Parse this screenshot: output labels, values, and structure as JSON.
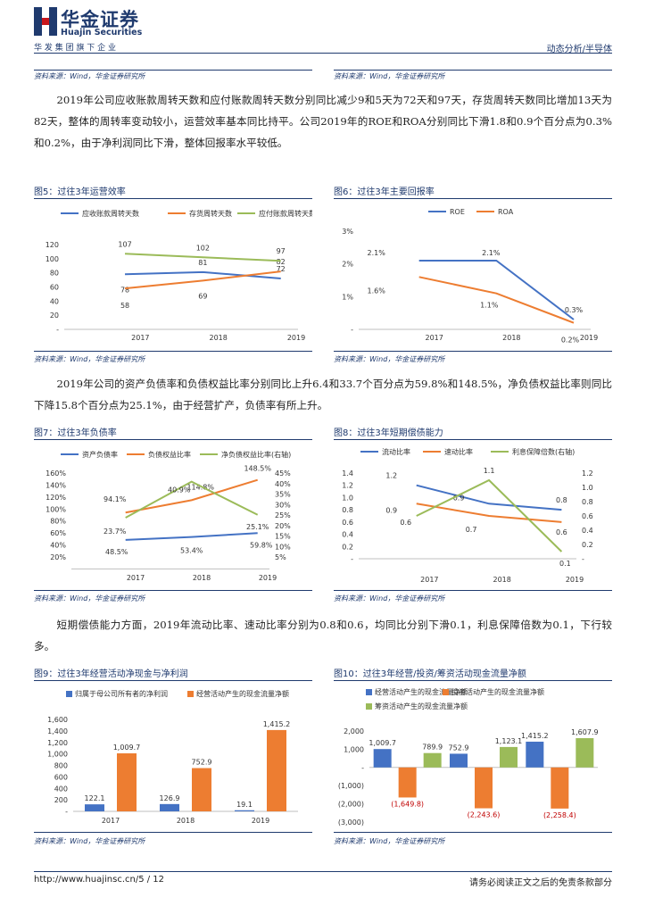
{
  "header": {
    "brand_cn": "华金证券",
    "brand_en": "Huajin Securities",
    "tagline": "华 发 集 团 旗 下 企 业",
    "section": "动态分析/半导体"
  },
  "top_sources": {
    "left": "资料来源：Wind，华金证券研究所",
    "right": "资料来源：Wind，华金证券研究所"
  },
  "para1": "2019年公司应收账款周转天数和应付账款周转天数分别同比减少9和5天为72天和97天，存货周转天数同比增加13天为82天，整体的周转率变动较小，运营效率基本同比持平。公司2019年的ROE和ROA分别同比下滑1.8和0.9个百分点为0.3%和0.2%，由于净利润同比下滑，整体回报率水平较低。",
  "para2": "2019年公司的资产负债率和负债权益比率分别同比上升6.4和33.7个百分点为59.8%和148.5%，净负债权益比率则同比下降15.8个百分点为25.1%，由于经营扩产，负债率有所上升。",
  "para3": "短期偿债能力方面，2019年流动比率、速动比率分别为0.8和0.6，均同比分别下滑0.1，利息保障倍数为0.1，下行较多。",
  "figures": {
    "fig5": {
      "title": "图5：过往3年运营效率",
      "source": "资料来源：Wind，华金证券研究所"
    },
    "fig6": {
      "title": "图6：过往3年主要回报率",
      "source": "资料来源：Wind，华金证券研究所"
    },
    "fig7": {
      "title": "图7：过往3年负债率",
      "source": "资料来源：Wind，华金证券研究所"
    },
    "fig8": {
      "title": "图8：过往3年短期偿债能力",
      "source": "资料来源：Wind，华金证券研究所"
    },
    "fig9": {
      "title": "图9：过往3年经营活动净现金与净利润",
      "source": "资料来源：Wind，华金证券研究所"
    },
    "fig10": {
      "title": "图10：过往3年经营/投资/筹资活动现金流量净额",
      "source": "资料来源：Wind，华金证券研究所"
    }
  },
  "footer": {
    "left": "http://www.huajinsc.cn/5 / 12",
    "right": "请务必阅读正文之后的免责条款部分"
  },
  "chart_data": [
    {
      "id": "fig5",
      "type": "line",
      "categories": [
        "2017",
        "2018",
        "2019"
      ],
      "y_ticks": [
        "-",
        "20",
        "40",
        "60",
        "80",
        "100",
        "120"
      ],
      "ylim": [
        0,
        120
      ],
      "series": [
        {
          "name": "应收账款周转天数",
          "color": "#4472c4",
          "values": [
            78,
            81,
            72
          ],
          "labels": [
            "78",
            "81",
            "72"
          ]
        },
        {
          "name": "存货周转天数",
          "color": "#ed7d31",
          "values": [
            58,
            69,
            82
          ],
          "labels": [
            "58",
            "69",
            "82"
          ]
        },
        {
          "name": "应付账款周转天数",
          "color": "#9bbb59",
          "values": [
            107,
            102,
            97
          ],
          "labels": [
            "107",
            "102",
            "97"
          ]
        }
      ]
    },
    {
      "id": "fig6",
      "type": "line",
      "categories": [
        "2017",
        "2018",
        "2019"
      ],
      "y_ticks": [
        "-",
        "1%",
        "2%",
        "3%"
      ],
      "ylim": [
        0,
        3
      ],
      "series": [
        {
          "name": "ROE",
          "color": "#4472c4",
          "values": [
            2.1,
            2.1,
            0.3
          ],
          "labels": [
            "2.1%",
            "2.1%",
            "0.3%"
          ]
        },
        {
          "name": "ROA",
          "color": "#ed7d31",
          "values": [
            1.6,
            1.1,
            0.2
          ],
          "labels": [
            "1.6%",
            "1.1%",
            "0.2%"
          ]
        }
      ]
    },
    {
      "id": "fig7",
      "type": "line",
      "categories": [
        "2017",
        "2018",
        "2019"
      ],
      "y_ticks": [
        "20%",
        "40%",
        "60%",
        "80%",
        "100%",
        "120%",
        "140%",
        "160%"
      ],
      "ylim": [
        20,
        160
      ],
      "y2_ticks": [
        "5%",
        "10%",
        "15%",
        "20%",
        "25%",
        "30%",
        "35%",
        "40%",
        "45%"
      ],
      "y2lim": [
        5,
        45
      ],
      "series": [
        {
          "name": "资产负债率",
          "color": "#4472c4",
          "axis": "left",
          "values": [
            48.5,
            53.4,
            59.8
          ],
          "labels": [
            "48.5%",
            "53.4%",
            "59.8%"
          ]
        },
        {
          "name": "负债权益比率",
          "color": "#ed7d31",
          "axis": "left",
          "values": [
            94.1,
            114.8,
            148.5
          ],
          "labels": [
            "94.1%",
            "114.8%",
            "148.5%"
          ]
        },
        {
          "name": "净负债权益比率(右轴)",
          "color": "#9bbb59",
          "axis": "right",
          "values": [
            23.7,
            40.9,
            25.1
          ],
          "labels": [
            "23.7%",
            "40.9%",
            "25.1%"
          ]
        }
      ]
    },
    {
      "id": "fig8",
      "type": "line",
      "categories": [
        "2017",
        "2018",
        "2019"
      ],
      "y_ticks": [
        "-",
        "0.2",
        "0.4",
        "0.6",
        "0.8",
        "1.0",
        "1.2",
        "1.4"
      ],
      "ylim": [
        0,
        1.4
      ],
      "y2_ticks": [
        "-",
        "0.2",
        "0.4",
        "0.6",
        "0.8",
        "1.0",
        "1.2"
      ],
      "y2lim": [
        0,
        1.2
      ],
      "series": [
        {
          "name": "流动比率",
          "color": "#4472c4",
          "axis": "left",
          "values": [
            1.2,
            0.9,
            0.8
          ],
          "labels": [
            "1.2",
            "0.9",
            "0.8"
          ]
        },
        {
          "name": "速动比率",
          "color": "#ed7d31",
          "axis": "left",
          "values": [
            0.9,
            0.7,
            0.6
          ],
          "labels": [
            "0.9",
            "0.7",
            "0.6"
          ]
        },
        {
          "name": "利息保障倍数(右轴)",
          "color": "#9bbb59",
          "axis": "right",
          "values": [
            0.6,
            1.1,
            0.1
          ],
          "labels": [
            "0.6",
            "1.1",
            "0.1"
          ]
        }
      ]
    },
    {
      "id": "fig9",
      "type": "bar",
      "categories": [
        "2017",
        "2018",
        "2019"
      ],
      "y_ticks": [
        "-",
        "200",
        "400",
        "600",
        "800",
        "1,000",
        "1,200",
        "1,400",
        "1,600"
      ],
      "ylim": [
        0,
        1600
      ],
      "series": [
        {
          "name": "归属于母公司所有者的净利润",
          "color": "#4472c4",
          "values": [
            122.1,
            126.9,
            19.1
          ],
          "labels": [
            "122.1",
            "126.9",
            "19.1"
          ]
        },
        {
          "name": "经营活动产生的现金流量净额",
          "color": "#ed7d31",
          "values": [
            1009.7,
            752.9,
            1415.2
          ],
          "labels": [
            "1,009.7",
            "752.9",
            "1,415.2"
          ]
        }
      ]
    },
    {
      "id": "fig10",
      "type": "bar",
      "categories": [
        "2017",
        "2018",
        "2019"
      ],
      "y_ticks": [
        "(3,000)",
        "(2,000)",
        "(1,000)",
        "-",
        "1,000",
        "2,000"
      ],
      "ylim": [
        -3000,
        2000
      ],
      "series": [
        {
          "name": "经营活动产生的现金流量净额",
          "color": "#4472c4",
          "values": [
            1009.7,
            752.9,
            1415.2
          ],
          "labels": [
            "1,009.7",
            "752.9",
            "1,415.2"
          ]
        },
        {
          "name": "投资活动产生的现金流量净额",
          "color": "#ed7d31",
          "values": [
            -1649.8,
            -2243.6,
            -2258.4
          ],
          "labels": [
            "(1,649.8)",
            "(2,243.6)",
            "(2,258.4)"
          ]
        },
        {
          "name": "筹资活动产生的现金流量净额",
          "color": "#9bbb59",
          "values": [
            789.9,
            1123.1,
            1607.9
          ],
          "labels": [
            "789.9",
            "1,123.1",
            "1,607.9"
          ]
        }
      ]
    }
  ]
}
